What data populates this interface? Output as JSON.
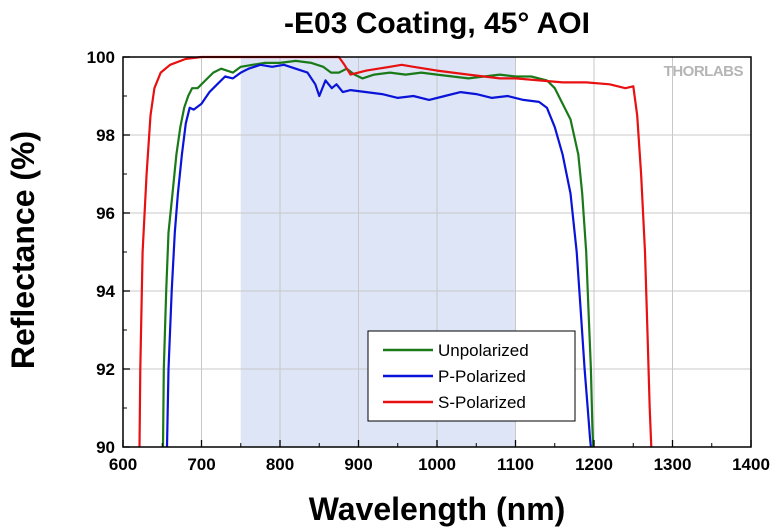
{
  "chart_data": {
    "type": "line",
    "title": "-E03 Coating, 45° AOI",
    "xlabel": "Wavelength (nm)",
    "ylabel": "Reflectance (%)",
    "xlim": [
      600,
      1400
    ],
    "ylim": [
      90,
      100
    ],
    "xticks": [
      600,
      700,
      800,
      900,
      1000,
      1100,
      1200,
      1300,
      1400
    ],
    "yticks": [
      90,
      92,
      94,
      96,
      98,
      100
    ],
    "grid": true,
    "legend_position": "bottom-center",
    "shaded_region": {
      "x": [
        750,
        1100
      ],
      "color": "#dde5f6"
    },
    "watermark": "THORLABS",
    "series": [
      {
        "name": "Unpolarized",
        "color": "#1a7a1a",
        "points": [
          [
            651,
            90
          ],
          [
            652,
            92
          ],
          [
            655,
            94
          ],
          [
            658,
            95.5
          ],
          [
            663,
            96.5
          ],
          [
            668,
            97.5
          ],
          [
            673,
            98.2
          ],
          [
            678,
            98.7
          ],
          [
            683,
            99.0
          ],
          [
            688,
            99.2
          ],
          [
            695,
            99.2
          ],
          [
            705,
            99.4
          ],
          [
            715,
            99.6
          ],
          [
            725,
            99.7
          ],
          [
            740,
            99.6
          ],
          [
            750,
            99.75
          ],
          [
            765,
            99.8
          ],
          [
            780,
            99.85
          ],
          [
            800,
            99.85
          ],
          [
            820,
            99.9
          ],
          [
            840,
            99.85
          ],
          [
            855,
            99.75
          ],
          [
            865,
            99.6
          ],
          [
            875,
            99.6
          ],
          [
            885,
            99.7
          ],
          [
            895,
            99.55
          ],
          [
            905,
            99.45
          ],
          [
            920,
            99.55
          ],
          [
            940,
            99.6
          ],
          [
            960,
            99.55
          ],
          [
            980,
            99.6
          ],
          [
            1000,
            99.55
          ],
          [
            1020,
            99.5
          ],
          [
            1040,
            99.45
          ],
          [
            1060,
            99.5
          ],
          [
            1080,
            99.55
          ],
          [
            1100,
            99.5
          ],
          [
            1120,
            99.5
          ],
          [
            1140,
            99.4
          ],
          [
            1150,
            99.2
          ],
          [
            1160,
            98.8
          ],
          [
            1170,
            98.4
          ],
          [
            1180,
            97.5
          ],
          [
            1185,
            96.5
          ],
          [
            1190,
            95
          ],
          [
            1193,
            93.5
          ],
          [
            1196,
            92
          ],
          [
            1198,
            90.5
          ],
          [
            1199,
            90
          ]
        ]
      },
      {
        "name": "P-Polarized",
        "color": "#0a14d8",
        "points": [
          [
            656,
            90
          ],
          [
            658,
            92
          ],
          [
            662,
            94
          ],
          [
            666,
            95.5
          ],
          [
            670,
            96.5
          ],
          [
            675,
            97.5
          ],
          [
            680,
            98.3
          ],
          [
            685,
            98.7
          ],
          [
            690,
            98.65
          ],
          [
            700,
            98.8
          ],
          [
            710,
            99.1
          ],
          [
            720,
            99.3
          ],
          [
            730,
            99.5
          ],
          [
            740,
            99.45
          ],
          [
            750,
            99.6
          ],
          [
            760,
            99.7
          ],
          [
            775,
            99.8
          ],
          [
            790,
            99.75
          ],
          [
            805,
            99.8
          ],
          [
            820,
            99.7
          ],
          [
            835,
            99.6
          ],
          [
            845,
            99.3
          ],
          [
            850,
            99.0
          ],
          [
            858,
            99.4
          ],
          [
            866,
            99.2
          ],
          [
            872,
            99.3
          ],
          [
            880,
            99.1
          ],
          [
            890,
            99.15
          ],
          [
            910,
            99.1
          ],
          [
            930,
            99.05
          ],
          [
            950,
            98.95
          ],
          [
            970,
            99.0
          ],
          [
            990,
            98.9
          ],
          [
            1010,
            99.0
          ],
          [
            1030,
            99.1
          ],
          [
            1050,
            99.05
          ],
          [
            1070,
            98.95
          ],
          [
            1090,
            99.0
          ],
          [
            1110,
            98.9
          ],
          [
            1130,
            98.85
          ],
          [
            1140,
            98.7
          ],
          [
            1150,
            98.2
          ],
          [
            1160,
            97.5
          ],
          [
            1170,
            96.5
          ],
          [
            1178,
            95
          ],
          [
            1183,
            93.5
          ],
          [
            1188,
            92
          ],
          [
            1192,
            91
          ],
          [
            1195,
            90.2
          ],
          [
            1196,
            90
          ]
        ]
      },
      {
        "name": "S-Polarized",
        "color": "#e81010",
        "points": [
          [
            621,
            90
          ],
          [
            622,
            92
          ],
          [
            625,
            95
          ],
          [
            630,
            97
          ],
          [
            635,
            98.5
          ],
          [
            640,
            99.2
          ],
          [
            648,
            99.6
          ],
          [
            660,
            99.8
          ],
          [
            680,
            99.95
          ],
          [
            700,
            100.0
          ],
          [
            740,
            100.0
          ],
          [
            800,
            100.0
          ],
          [
            850,
            100.0
          ],
          [
            875,
            100.0
          ],
          [
            882,
            99.8
          ],
          [
            890,
            99.55
          ],
          [
            900,
            99.6
          ],
          [
            910,
            99.65
          ],
          [
            925,
            99.7
          ],
          [
            940,
            99.75
          ],
          [
            955,
            99.8
          ],
          [
            970,
            99.75
          ],
          [
            985,
            99.7
          ],
          [
            1000,
            99.65
          ],
          [
            1020,
            99.6
          ],
          [
            1040,
            99.55
          ],
          [
            1060,
            99.5
          ],
          [
            1080,
            99.45
          ],
          [
            1100,
            99.45
          ],
          [
            1130,
            99.4
          ],
          [
            1160,
            99.35
          ],
          [
            1190,
            99.35
          ],
          [
            1220,
            99.3
          ],
          [
            1240,
            99.2
          ],
          [
            1250,
            99.25
          ],
          [
            1255,
            98.5
          ],
          [
            1260,
            97
          ],
          [
            1265,
            95
          ],
          [
            1268,
            93
          ],
          [
            1271,
            91
          ],
          [
            1273,
            90
          ]
        ]
      }
    ]
  }
}
